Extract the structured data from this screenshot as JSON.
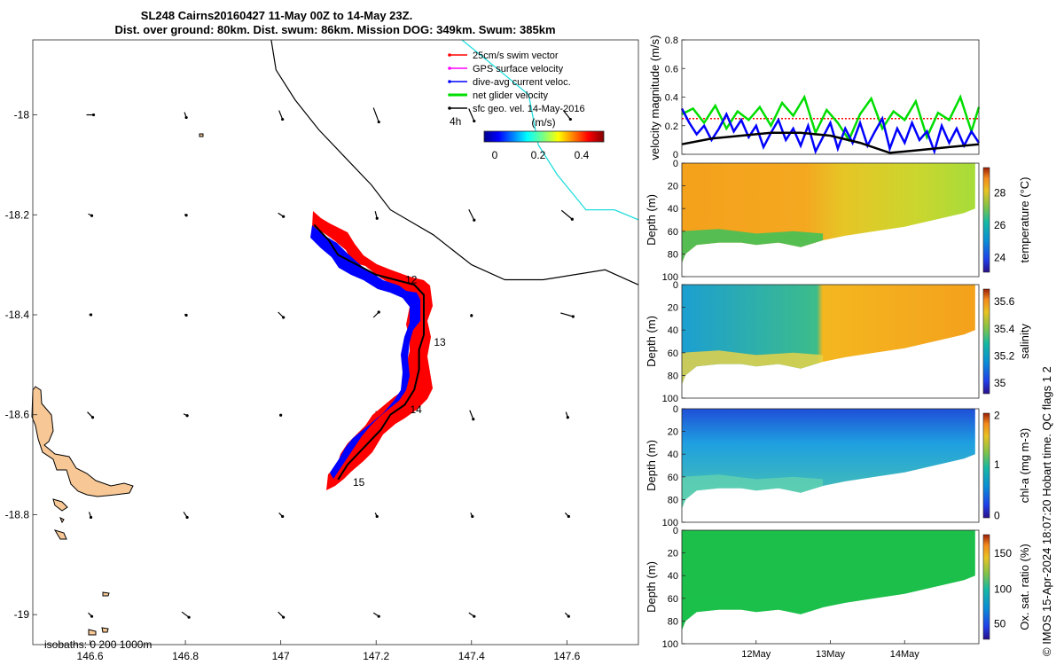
{
  "chart_data": {
    "title_line1": "SL248 Cairns20160427 11-May 00Z to 14-May 23Z.",
    "title_line2": "Dist. over ground: 80km. Dist. swum: 86km. Mission DOG: 349km. Swum: 385km",
    "map": {
      "type": "map",
      "xticks": [
        "146.6",
        "146.8",
        "147",
        "147.2",
        "147.4",
        "147.6"
      ],
      "yticks": [
        "-18",
        "-18.2",
        "-18.4",
        "-18.6",
        "-18.8",
        "-19"
      ],
      "xlim": [
        146.48,
        147.75
      ],
      "ylim": [
        -19.06,
        -17.85
      ],
      "legend": [
        {
          "label": "25cm/s swim vector",
          "color": "#ff0000"
        },
        {
          "label": "GPS surface velocity",
          "color": "#ff00ff"
        },
        {
          "label": "dive-avg current veloc.",
          "color": "#0000ff"
        },
        {
          "label": "net glider velocity",
          "color": "#00dd00"
        },
        {
          "label": "sfc geo. vel. 14-May-2016",
          "color": "#000000"
        }
      ],
      "colorbar_label": "(m/s)",
      "colorbar_ticks": [
        "0",
        "0.2",
        "0.4"
      ],
      "vector_scale_label": "4h",
      "isobaths_label": "isobaths: 0   200  1000m",
      "track_labels": [
        {
          "text": "12",
          "lon": 147.25,
          "lat": -18.33
        },
        {
          "text": "13",
          "lon": 147.31,
          "lat": -18.455
        },
        {
          "text": "14",
          "lon": 147.26,
          "lat": -18.59
        },
        {
          "text": "15",
          "lon": 147.14,
          "lat": -18.735
        }
      ],
      "track": [
        [
          147.07,
          -18.22
        ],
        [
          147.1,
          -18.25
        ],
        [
          147.12,
          -18.28
        ],
        [
          147.16,
          -18.3
        ],
        [
          147.2,
          -18.32
        ],
        [
          147.24,
          -18.33
        ],
        [
          147.28,
          -18.34
        ],
        [
          147.3,
          -18.36
        ],
        [
          147.3,
          -18.4
        ],
        [
          147.3,
          -18.44
        ],
        [
          147.29,
          -18.47
        ],
        [
          147.29,
          -18.51
        ],
        [
          147.28,
          -18.55
        ],
        [
          147.26,
          -18.58
        ],
        [
          147.23,
          -18.6
        ],
        [
          147.21,
          -18.63
        ],
        [
          147.18,
          -18.66
        ],
        [
          147.16,
          -18.68
        ],
        [
          147.14,
          -18.7
        ],
        [
          147.12,
          -18.73
        ]
      ],
      "coastline": [
        [
          146.98,
          -17.85
        ],
        [
          146.99,
          -17.91
        ],
        [
          147.03,
          -17.97
        ],
        [
          147.08,
          -18.03
        ],
        [
          147.14,
          -18.09
        ],
        [
          147.19,
          -18.14
        ],
        [
          147.23,
          -18.19
        ],
        [
          147.32,
          -18.24
        ],
        [
          147.4,
          -18.3
        ],
        [
          147.47,
          -18.33
        ],
        [
          147.55,
          -18.33
        ],
        [
          147.68,
          -18.31
        ],
        [
          147.75,
          -18.34
        ]
      ],
      "reef_edge": [
        [
          147.38,
          -17.85
        ],
        [
          147.47,
          -17.92
        ],
        [
          147.52,
          -17.96
        ],
        [
          147.53,
          -18.01
        ],
        [
          147.54,
          -18.06
        ],
        [
          147.58,
          -18.12
        ],
        [
          147.64,
          -18.19
        ],
        [
          147.7,
          -18.19
        ],
        [
          147.75,
          -18.21
        ]
      ]
    },
    "velocity": {
      "type": "line",
      "ylabel": "velocity magnitude (m/s)",
      "ylim": [
        0,
        0.8
      ],
      "yticks": [
        "0",
        "0.2",
        "0.4",
        "0.6",
        "0.8"
      ],
      "xlim_days": [
        11.0,
        15.0
      ],
      "series": [
        {
          "color": "#ff0000",
          "x": [
            11.0,
            15.0
          ],
          "y": [
            0.25,
            0.25
          ]
        },
        {
          "color": "#00dd00",
          "x": [
            11.0,
            11.15,
            11.3,
            11.45,
            11.6,
            11.75,
            11.9,
            12.05,
            12.2,
            12.35,
            12.5,
            12.65,
            12.8,
            12.95,
            13.1,
            13.25,
            13.4,
            13.55,
            13.7,
            13.85,
            14.0,
            14.15,
            14.3,
            14.45,
            14.6,
            14.75,
            14.9,
            15.0
          ],
          "y": [
            0.28,
            0.32,
            0.22,
            0.34,
            0.18,
            0.3,
            0.24,
            0.33,
            0.2,
            0.36,
            0.27,
            0.4,
            0.15,
            0.31,
            0.22,
            0.1,
            0.28,
            0.39,
            0.18,
            0.3,
            0.24,
            0.37,
            0.12,
            0.29,
            0.24,
            0.4,
            0.16,
            0.33
          ]
        },
        {
          "color": "#0000ff",
          "x": [
            11.0,
            11.1,
            11.2,
            11.3,
            11.4,
            11.5,
            11.6,
            11.7,
            11.8,
            11.9,
            12.0,
            12.1,
            12.2,
            12.3,
            12.4,
            12.5,
            12.6,
            12.7,
            12.8,
            12.9,
            13.0,
            13.1,
            13.2,
            13.3,
            13.4,
            13.5,
            13.6,
            13.7,
            13.8,
            13.9,
            14.0,
            14.1,
            14.2,
            14.3,
            14.4,
            14.5,
            14.6,
            14.7,
            14.8,
            14.9,
            15.0
          ],
          "y": [
            0.32,
            0.22,
            0.14,
            0.2,
            0.1,
            0.18,
            0.28,
            0.16,
            0.24,
            0.12,
            0.2,
            0.05,
            0.15,
            0.24,
            0.1,
            0.18,
            0.06,
            0.2,
            0.02,
            0.12,
            0.22,
            0.04,
            0.18,
            0.08,
            0.22,
            0.06,
            0.16,
            0.25,
            0.04,
            0.18,
            0.08,
            0.22,
            0.1,
            0.16,
            0.02,
            0.2,
            0.08,
            0.18,
            0.06,
            0.16,
            0.08
          ]
        },
        {
          "color": "#000000",
          "x": [
            11.0,
            11.4,
            11.8,
            12.2,
            12.6,
            13.0,
            13.4,
            13.8,
            14.2,
            14.6,
            15.0
          ],
          "y": [
            0.07,
            0.11,
            0.13,
            0.15,
            0.15,
            0.13,
            0.08,
            0.01,
            0.03,
            0.05,
            0.07
          ]
        }
      ]
    },
    "sections": [
      {
        "ylabel": "Depth (m)",
        "clabel": "temperature (°C)",
        "cticks": [
          "24",
          "26",
          "28"
        ],
        "cticks_y": [
          0.86,
          0.55,
          0.24
        ],
        "yticks": [
          "0",
          "20",
          "40",
          "60",
          "80",
          "100"
        ]
      },
      {
        "ylabel": "Depth (m)",
        "clabel": "salinity",
        "cticks": [
          "35",
          "35.2",
          "35.4",
          "35.6"
        ],
        "cticks_y": [
          0.9,
          0.64,
          0.38,
          0.12
        ],
        "yticks": [
          "0",
          "20",
          "40",
          "60",
          "80",
          "100"
        ]
      },
      {
        "ylabel": "Depth (m)",
        "clabel": "chl-a (mg m-3)",
        "cticks": [
          "0",
          "1",
          "2"
        ],
        "cticks_y": [
          0.98,
          0.49,
          0.02
        ],
        "yticks": [
          "0",
          "20",
          "40",
          "60",
          "80",
          "100"
        ]
      },
      {
        "ylabel": "Depth (m)",
        "clabel": "Ox. sat. ratio (%)",
        "cticks": [
          "50",
          "100",
          "150"
        ],
        "cticks_y": [
          0.85,
          0.52,
          0.18
        ],
        "yticks": [
          "0",
          "20",
          "40",
          "60",
          "80",
          "100"
        ]
      }
    ],
    "time_ticks": [
      "12May",
      "13May",
      "14May"
    ],
    "side_note": "© IMOS 15-Apr-2024 18:07:20 Hobart time. QC flags 1  2"
  }
}
